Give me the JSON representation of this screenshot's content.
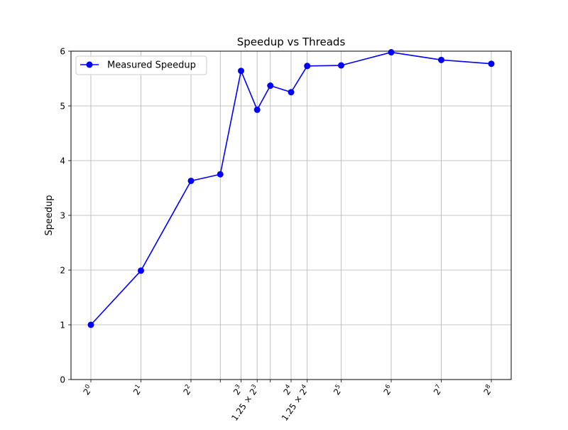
{
  "chart_data": {
    "type": "line",
    "title": "Speedup vs Threads",
    "xlabel": "",
    "ylabel": "Speedup",
    "x_scale": "log2",
    "x": [
      1,
      2,
      4,
      6,
      8,
      10,
      12,
      16,
      20,
      32,
      64,
      128,
      256
    ],
    "y_ticks": [
      0,
      1,
      2,
      3,
      4,
      5,
      6
    ],
    "ylim": [
      0,
      6
    ],
    "grid": true,
    "legend_position": "top-left",
    "x_ticks": [
      {
        "value": 1,
        "base": "2",
        "exp": "0",
        "prefix": ""
      },
      {
        "value": 2,
        "base": "2",
        "exp": "1",
        "prefix": ""
      },
      {
        "value": 4,
        "base": "2",
        "exp": "2",
        "prefix": ""
      },
      {
        "value": 6,
        "base": "",
        "exp": "",
        "prefix": ""
      },
      {
        "value": 8,
        "base": "2",
        "exp": "3",
        "prefix": ""
      },
      {
        "value": 10,
        "base": "2",
        "exp": "3",
        "prefix": "1.25 × "
      },
      {
        "value": 12,
        "base": "",
        "exp": "",
        "prefix": ""
      },
      {
        "value": 16,
        "base": "2",
        "exp": "4",
        "prefix": ""
      },
      {
        "value": 20,
        "base": "2",
        "exp": "4",
        "prefix": "1.25 × "
      },
      {
        "value": 32,
        "base": "2",
        "exp": "5",
        "prefix": ""
      },
      {
        "value": 64,
        "base": "2",
        "exp": "6",
        "prefix": ""
      },
      {
        "value": 128,
        "base": "2",
        "exp": "7",
        "prefix": ""
      },
      {
        "value": 256,
        "base": "2",
        "exp": "8",
        "prefix": ""
      }
    ],
    "series": [
      {
        "name": "Measured Speedup",
        "color": "#0000ff",
        "marker": "circle",
        "values": [
          1.0,
          1.99,
          3.63,
          3.75,
          5.64,
          4.93,
          5.37,
          5.25,
          5.73,
          5.74,
          5.98,
          5.84,
          5.77
        ]
      }
    ]
  }
}
